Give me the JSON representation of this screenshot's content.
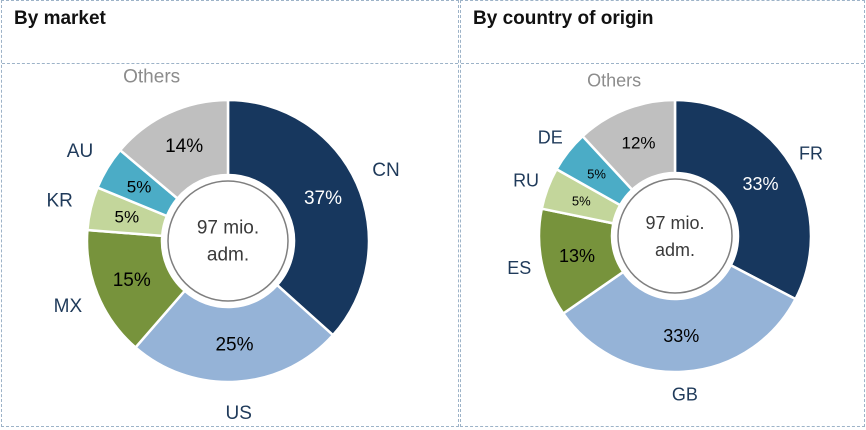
{
  "chart_data": [
    {
      "type": "pie",
      "title": "By market",
      "center_label": [
        "97 mio.",
        "adm."
      ],
      "categories": [
        "CN",
        "US",
        "MX",
        "KR",
        "AU",
        "Others"
      ],
      "values": [
        37,
        25,
        15,
        5,
        5,
        14
      ],
      "data_labels": [
        "37%",
        "25%",
        "15%",
        "5%",
        "5%",
        "14%"
      ],
      "colors": [
        "#17375e",
        "#95b3d7",
        "#77933c",
        "#c3d69b",
        "#4bacc6",
        "#bfbfbf"
      ]
    },
    {
      "type": "pie",
      "title": "By country of origin",
      "center_label": [
        "97 mio.",
        "adm."
      ],
      "categories": [
        "FR",
        "GB",
        "ES",
        "RU",
        "DE",
        "Others"
      ],
      "values": [
        33,
        33,
        13,
        5,
        5,
        12
      ],
      "data_labels": [
        "33%",
        "33%",
        "13%",
        "5%",
        "5%",
        "12%"
      ],
      "colors": [
        "#17375e",
        "#95b3d7",
        "#77933c",
        "#c3d69b",
        "#4bacc6",
        "#bfbfbf"
      ]
    }
  ]
}
